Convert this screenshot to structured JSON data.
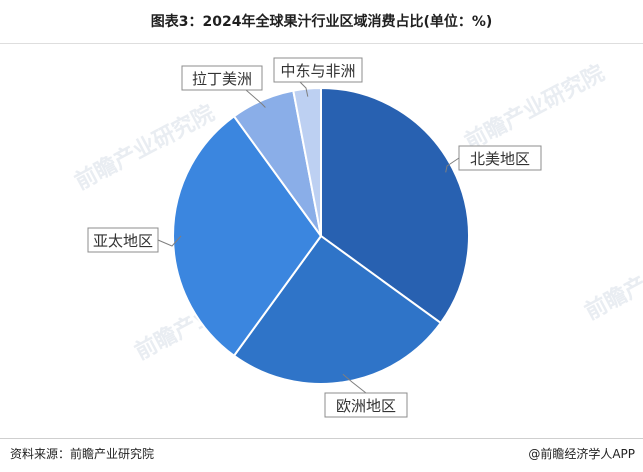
{
  "title": "图表3：2024年全球果汁行业区域消费占比(单位：%)",
  "source": "资料来源：前瞻产业研究院",
  "credit": "@前瞻经济学人APP",
  "watermark": "前瞻产业研究院",
  "chart_data": {
    "type": "pie",
    "categories": [
      "北美地区",
      "欧洲地区",
      "亚太地区",
      "拉丁美洲",
      "中东与非洲"
    ],
    "values": [
      35,
      25,
      30,
      7,
      3
    ],
    "colors": [
      "#2861b1",
      "#2f74c8",
      "#3b86df",
      "#8aaee8",
      "#bdd0f2"
    ],
    "start_angle_deg": 0,
    "direction": "clockwise",
    "legend": "none",
    "data_labels": "category names with callout lines"
  }
}
